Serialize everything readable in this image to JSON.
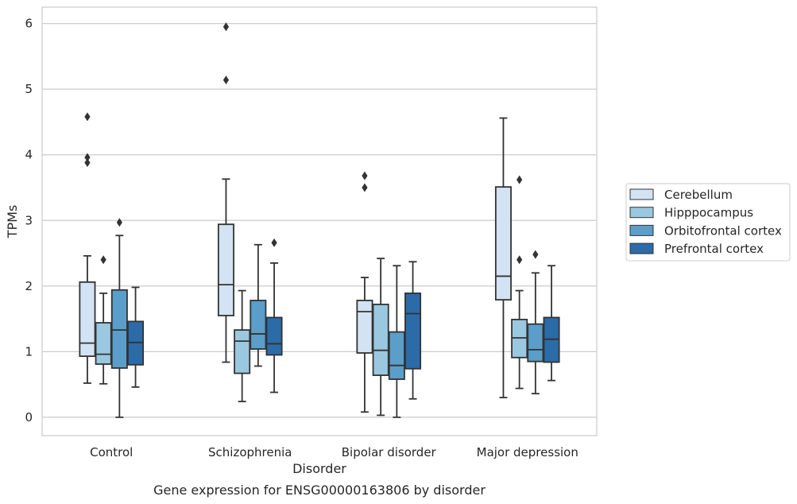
{
  "chart_data": {
    "type": "box",
    "title": "",
    "caption": "Gene expression for ENSG00000163806 by disorder",
    "xlabel": "Disorder",
    "ylabel": "TPMs",
    "ylim": [
      -0.28,
      6.25
    ],
    "yticks": [
      0,
      1,
      2,
      3,
      4,
      5,
      6
    ],
    "grid": "horizontal",
    "legend_position": "right",
    "categories": [
      "Control",
      "Schizophrenia",
      "Bipolar disorder",
      "Major depression"
    ],
    "series": [
      {
        "name": "Cerebellum",
        "color": "#d3e3f3",
        "boxes": [
          {
            "whisker_low": 0.52,
            "q1": 0.93,
            "median": 1.13,
            "q3": 2.06,
            "whisker_high": 2.46,
            "outliers": [
              3.88,
              3.96,
              4.58
            ]
          },
          {
            "whisker_low": 0.84,
            "q1": 1.55,
            "median": 2.02,
            "q3": 2.94,
            "whisker_high": 3.63,
            "outliers": [
              5.14,
              5.95
            ]
          },
          {
            "whisker_low": 0.08,
            "q1": 0.98,
            "median": 1.61,
            "q3": 1.78,
            "whisker_high": 2.13,
            "outliers": [
              3.5,
              3.68
            ]
          },
          {
            "whisker_low": 0.3,
            "q1": 1.79,
            "median": 2.15,
            "q3": 3.51,
            "whisker_high": 4.56,
            "outliers": []
          }
        ]
      },
      {
        "name": "Hipppocampus",
        "color": "#9ac8e0",
        "boxes": [
          {
            "whisker_low": 0.51,
            "q1": 0.81,
            "median": 0.96,
            "q3": 1.44,
            "whisker_high": 1.89,
            "outliers": [
              2.4
            ]
          },
          {
            "whisker_low": 0.24,
            "q1": 0.67,
            "median": 1.16,
            "q3": 1.33,
            "whisker_high": 1.93,
            "outliers": []
          },
          {
            "whisker_low": 0.03,
            "q1": 0.64,
            "median": 1.02,
            "q3": 1.72,
            "whisker_high": 2.42,
            "outliers": []
          },
          {
            "whisker_low": 0.44,
            "q1": 0.91,
            "median": 1.21,
            "q3": 1.49,
            "whisker_high": 1.93,
            "outliers": [
              2.4,
              3.62
            ]
          }
        ]
      },
      {
        "name": "Orbitofrontal cortex",
        "color": "#5a9ec9",
        "boxes": [
          {
            "whisker_low": 0.0,
            "q1": 0.75,
            "median": 1.33,
            "q3": 1.94,
            "whisker_high": 2.77,
            "outliers": [
              2.97
            ]
          },
          {
            "whisker_low": 0.78,
            "q1": 1.04,
            "median": 1.27,
            "q3": 1.78,
            "whisker_high": 2.63,
            "outliers": []
          },
          {
            "whisker_low": 0.0,
            "q1": 0.58,
            "median": 0.79,
            "q3": 1.3,
            "whisker_high": 2.31,
            "outliers": []
          },
          {
            "whisker_low": 0.36,
            "q1": 0.85,
            "median": 1.03,
            "q3": 1.42,
            "whisker_high": 2.2,
            "outliers": [
              2.48
            ]
          }
        ]
      },
      {
        "name": "Prefrontal cortex",
        "color": "#2b6ba8",
        "boxes": [
          {
            "whisker_low": 0.46,
            "q1": 0.8,
            "median": 1.14,
            "q3": 1.46,
            "whisker_high": 1.98,
            "outliers": []
          },
          {
            "whisker_low": 0.38,
            "q1": 0.95,
            "median": 1.12,
            "q3": 1.52,
            "whisker_high": 2.35,
            "outliers": [
              2.66
            ]
          },
          {
            "whisker_low": 0.28,
            "q1": 0.74,
            "median": 1.58,
            "q3": 1.89,
            "whisker_high": 2.37,
            "outliers": []
          },
          {
            "whisker_low": 0.56,
            "q1": 0.84,
            "median": 1.19,
            "q3": 1.52,
            "whisker_high": 2.31,
            "outliers": []
          }
        ]
      }
    ]
  }
}
